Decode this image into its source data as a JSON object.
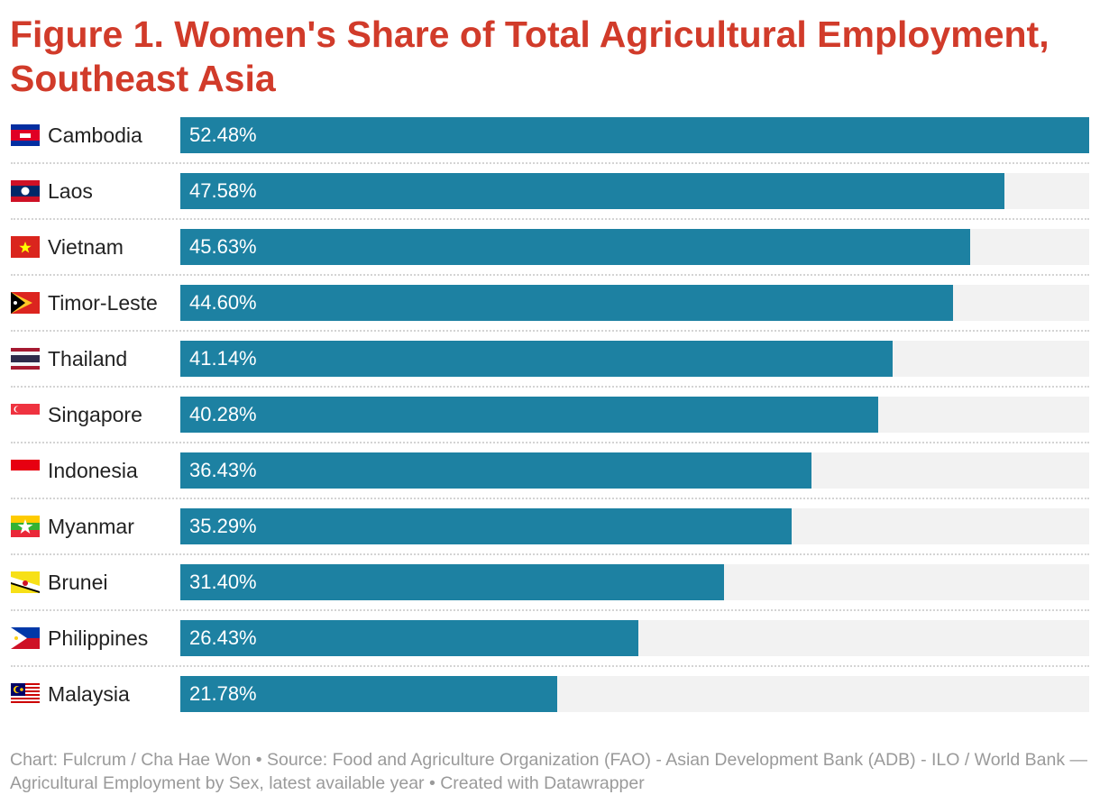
{
  "title": "Figure 1. Women's Share of Total Agricultural Employment, Southeast Asia",
  "footer": "Chart: Fulcrum / Cha Hae Won • Source: Food and Agriculture Organization (FAO) - Asian Development Bank (ADB) - ILO / World Bank — Agricultural Employment by Sex, latest available year • Created with Datawrapper",
  "colors": {
    "title": "#d13b2a",
    "bar": "#1d81a2",
    "track": "#f2f2f2"
  },
  "chart_data": {
    "type": "bar",
    "orientation": "horizontal",
    "title": "Figure 1. Women's Share of Total Agricultural Employment, Southeast Asia",
    "categories": [
      "Cambodia",
      "Laos",
      "Vietnam",
      "Timor-Leste",
      "Thailand",
      "Singapore",
      "Indonesia",
      "Myanmar",
      "Brunei",
      "Philippines",
      "Malaysia"
    ],
    "values": [
      52.48,
      47.58,
      45.63,
      44.6,
      41.14,
      40.28,
      36.43,
      35.29,
      31.4,
      26.43,
      21.78
    ],
    "value_labels": [
      "52.48%",
      "47.58%",
      "45.63%",
      "44.60%",
      "41.14%",
      "40.28%",
      "36.43%",
      "35.29%",
      "31.40%",
      "26.43%",
      "21.78%"
    ],
    "xlim": [
      0,
      52.48
    ],
    "grid": false,
    "flags": [
      "cambodia-flag",
      "laos-flag",
      "vietnam-flag",
      "timor-leste-flag",
      "thailand-flag",
      "singapore-flag",
      "indonesia-flag",
      "myanmar-flag",
      "brunei-flag",
      "philippines-flag",
      "malaysia-flag"
    ]
  }
}
